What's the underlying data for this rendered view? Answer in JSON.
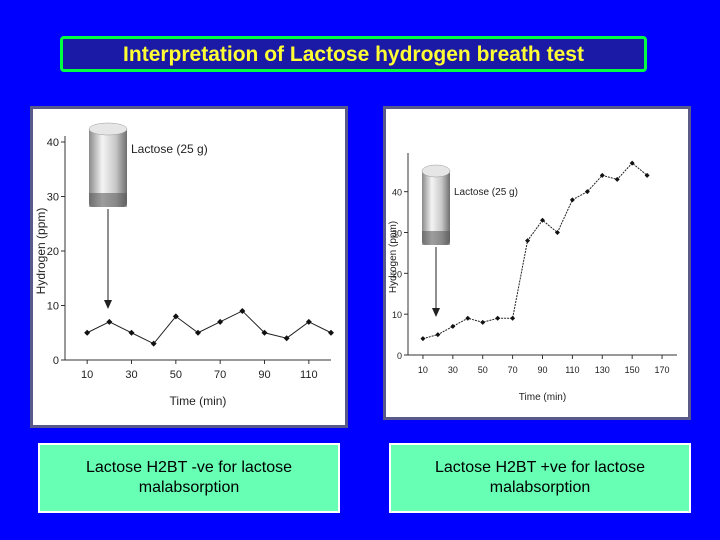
{
  "title": "Interpretation of Lactose hydrogen breath test",
  "colors": {
    "background": "#0000ff",
    "title_text": "#ffff33",
    "title_border": "#00ff40",
    "caption_background": "#66ffb3"
  },
  "captions": {
    "left": "Lactose H2BT -ve  for lactose malabsorption",
    "right": "Lactose H2BT +ve  for lactose malabsorption"
  },
  "chart_data": [
    {
      "type": "line",
      "xlabel": "Time (min)",
      "ylabel": "Hydrogen (ppm)",
      "annotation": "Lactose (25 g)",
      "xticks": [
        "10",
        "30",
        "50",
        "70",
        "90",
        "110"
      ],
      "yticks": [
        "0",
        "10",
        "20",
        "30",
        "40"
      ],
      "xlim": [
        0,
        120
      ],
      "ylim": [
        0,
        40
      ],
      "x": [
        10,
        20,
        30,
        40,
        50,
        60,
        70,
        80,
        90,
        100,
        110,
        120
      ],
      "y": [
        5,
        7,
        5,
        3,
        8,
        5,
        7,
        9,
        5,
        4,
        7,
        5
      ]
    },
    {
      "type": "line",
      "xlabel": "Time (min)",
      "ylabel": "Hydrogen (ppm)",
      "annotation": "Lactose (25 g)",
      "xticks": [
        "10",
        "30",
        "50",
        "70",
        "90",
        "110",
        "130",
        "150",
        "170"
      ],
      "yticks": [
        "0",
        "10",
        "20",
        "30",
        "40"
      ],
      "xlim": [
        0,
        180
      ],
      "ylim": [
        0,
        48
      ],
      "x": [
        10,
        20,
        30,
        40,
        50,
        60,
        70,
        80,
        90,
        100,
        110,
        120,
        130,
        140,
        150,
        160
      ],
      "y": [
        4,
        5,
        7,
        9,
        8,
        9,
        9,
        28,
        33,
        30,
        38,
        40,
        44,
        43,
        47,
        44
      ]
    }
  ]
}
